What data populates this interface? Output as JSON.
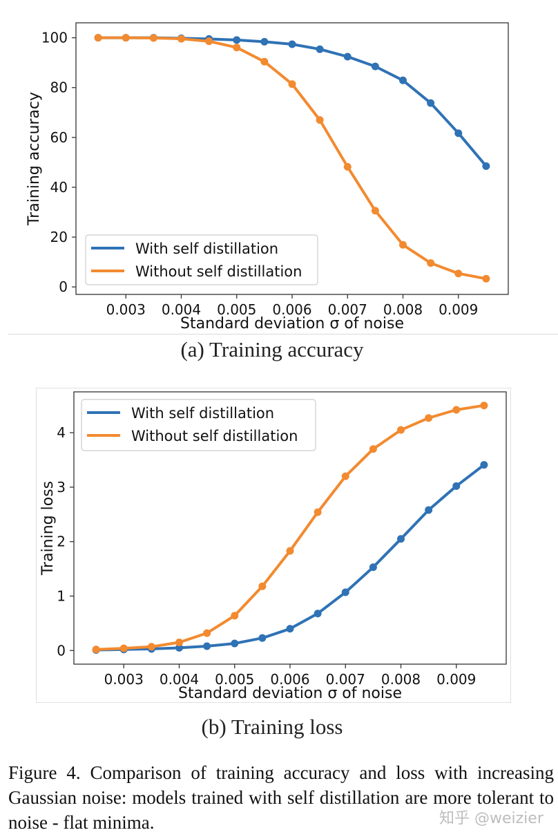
{
  "chart_data": [
    {
      "type": "line",
      "title": "",
      "xlabel": "Standard deviation σ of noise",
      "ylabel": "Training accuracy",
      "x": [
        0.0025,
        0.003,
        0.0035,
        0.004,
        0.0045,
        0.005,
        0.0055,
        0.006,
        0.0065,
        0.007,
        0.0075,
        0.008,
        0.0085,
        0.009,
        0.0095
      ],
      "xlim": [
        0.0021,
        0.0099
      ],
      "ylim": [
        -3,
        106
      ],
      "xticks": [
        0.003,
        0.004,
        0.005,
        0.006,
        0.007,
        0.008,
        0.009
      ],
      "xtick_labels": [
        "0.003",
        "0.004",
        "0.005",
        "0.006",
        "0.007",
        "0.008",
        "0.009"
      ],
      "yticks": [
        0,
        20,
        40,
        60,
        80,
        100
      ],
      "ytick_labels": [
        "0",
        "20",
        "40",
        "60",
        "80",
        "100"
      ],
      "grid": false,
      "legend_position": "bottom-left",
      "series": [
        {
          "name": "With self distillation",
          "color": "#2f72b5",
          "values": [
            100,
            100,
            100,
            99.8,
            99.5,
            99.1,
            98.4,
            97.4,
            95.4,
            92.4,
            88.5,
            82.9,
            73.8,
            61.7,
            48.5
          ]
        },
        {
          "name": "Without self distillation",
          "color": "#f28a30",
          "values": [
            100,
            100,
            99.9,
            99.6,
            98.6,
            96.1,
            90.4,
            81.4,
            67.0,
            48.2,
            30.6,
            16.9,
            9.6,
            5.4,
            3.3
          ]
        }
      ]
    },
    {
      "type": "line",
      "title": "",
      "xlabel": "Standard deviation σ of noise",
      "ylabel": "Training loss",
      "x": [
        0.0025,
        0.003,
        0.0035,
        0.004,
        0.0045,
        0.005,
        0.0055,
        0.006,
        0.0065,
        0.007,
        0.0075,
        0.008,
        0.0085,
        0.009,
        0.0095
      ],
      "xlim": [
        0.0021,
        0.0099
      ],
      "ylim": [
        -0.25,
        4.75
      ],
      "xticks": [
        0.003,
        0.004,
        0.005,
        0.006,
        0.007,
        0.008,
        0.009
      ],
      "xtick_labels": [
        "0.003",
        "0.004",
        "0.005",
        "0.006",
        "0.007",
        "0.008",
        "0.009"
      ],
      "yticks": [
        0,
        1,
        2,
        3,
        4
      ],
      "ytick_labels": [
        "0",
        "1",
        "2",
        "3",
        "4"
      ],
      "grid": false,
      "legend_position": "top-left",
      "series": [
        {
          "name": "With self distillation",
          "color": "#2f72b5",
          "values": [
            0.01,
            0.02,
            0.03,
            0.05,
            0.08,
            0.13,
            0.23,
            0.4,
            0.68,
            1.07,
            1.53,
            2.05,
            2.58,
            3.02,
            3.41
          ]
        },
        {
          "name": "Without self distillation",
          "color": "#f28a30",
          "values": [
            0.02,
            0.04,
            0.07,
            0.15,
            0.32,
            0.64,
            1.18,
            1.83,
            2.54,
            3.2,
            3.7,
            4.05,
            4.27,
            4.42,
            4.5
          ]
        }
      ]
    }
  ],
  "captions": {
    "a": "(a) Training accuracy",
    "b": "(b) Training loss",
    "figure": "Figure 4. Comparison of training accuracy and loss with increasing Gaussian noise: models trained with self distillation are more tolerant to noise - flat minima."
  },
  "watermark": "知乎 @weizier"
}
